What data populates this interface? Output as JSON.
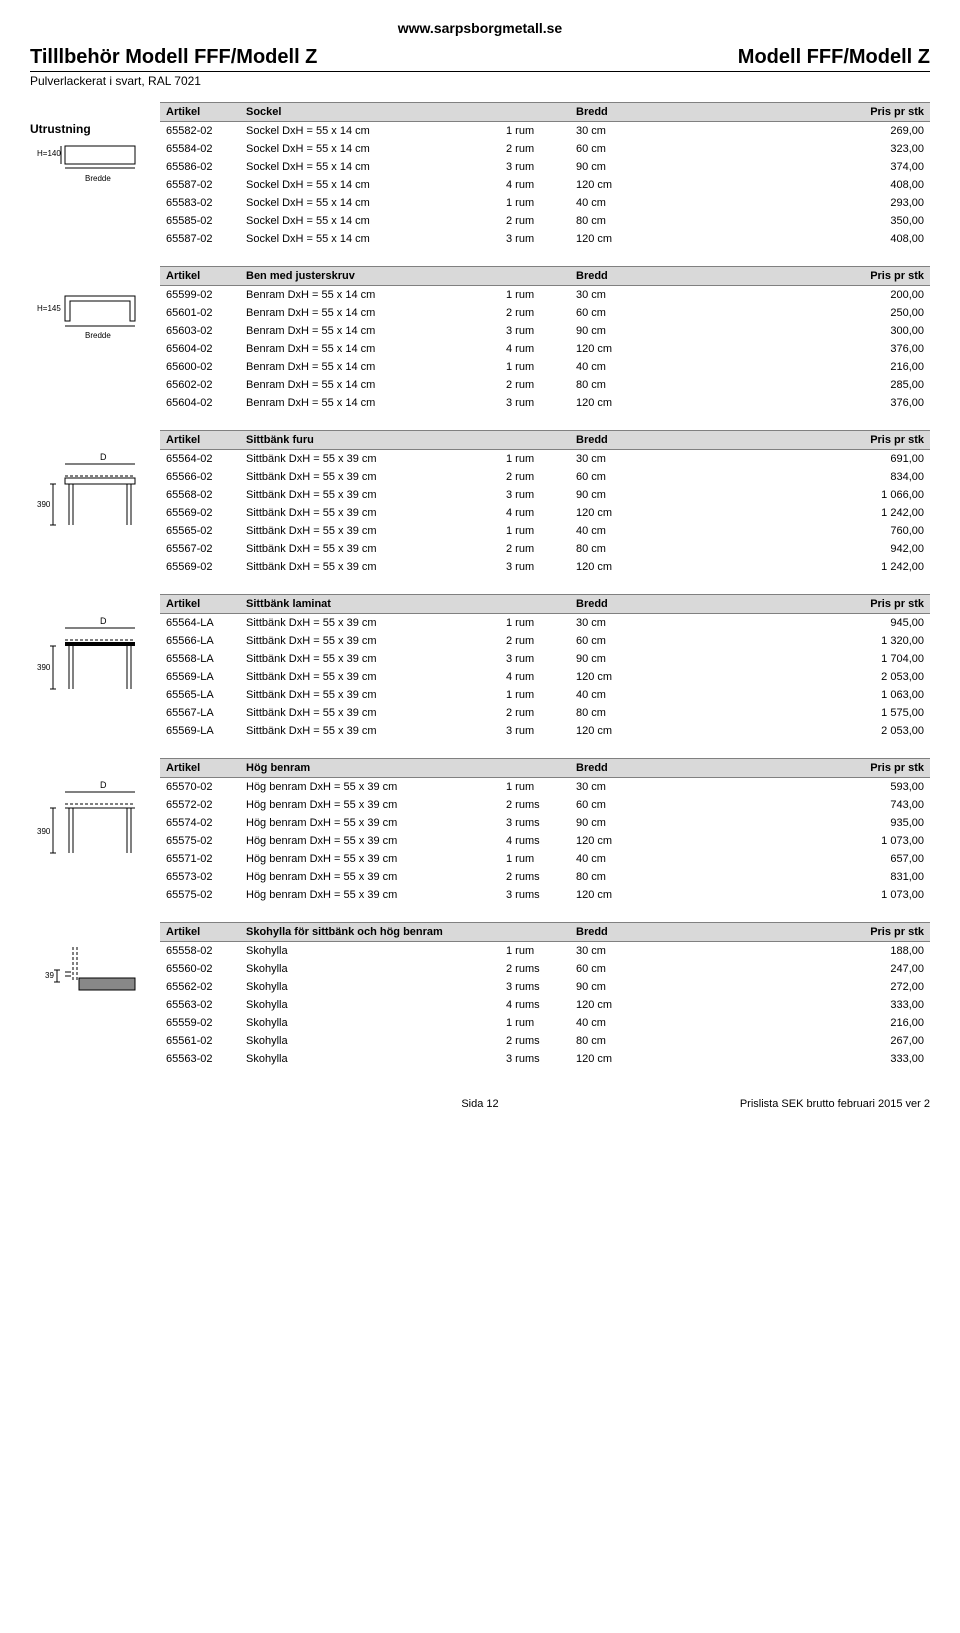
{
  "url": "www.sarpsborgmetall.se",
  "title_left": "Tilllbehör Modell FFF/Modell Z",
  "title_right": "Modell FFF/Modell Z",
  "subtitle": "Pulverlackerat i svart, RAL 7021",
  "utrustning_label": "Utrustning",
  "col_artikel": "Artikel",
  "col_bredd": "Bredd",
  "col_price": "Pris pr stk",
  "footer_page": "Sida 12",
  "footer_right": "Prislista SEK brutto februari 2015 ver 2",
  "sections": [
    {
      "header_desc": "Sockel",
      "rows": [
        {
          "art": "65582-02",
          "desc": "Sockel DxH = 55 x 14 cm",
          "rum": "1 rum",
          "bredd": "30 cm",
          "price": "269,00"
        },
        {
          "art": "65584-02",
          "desc": "Sockel DxH = 55 x 14 cm",
          "rum": "2 rum",
          "bredd": "60 cm",
          "price": "323,00"
        },
        {
          "art": "65586-02",
          "desc": "Sockel DxH = 55 x 14 cm",
          "rum": "3 rum",
          "bredd": "90 cm",
          "price": "374,00"
        },
        {
          "art": "65587-02",
          "desc": "Sockel DxH = 55 x 14 cm",
          "rum": "4 rum",
          "bredd": "120 cm",
          "price": "408,00"
        },
        {
          "art": "65583-02",
          "desc": "Sockel DxH = 55 x 14 cm",
          "rum": "1 rum",
          "bredd": "40 cm",
          "price": "293,00"
        },
        {
          "art": "65585-02",
          "desc": "Sockel DxH = 55 x 14 cm",
          "rum": "2 rum",
          "bredd": "80 cm",
          "price": "350,00"
        },
        {
          "art": "65587-02",
          "desc": "Sockel DxH = 55 x 14 cm",
          "rum": "3 rum",
          "bredd": "120 cm",
          "price": "408,00"
        }
      ],
      "schem_label_h": "H=140",
      "schem_label_b": "Bredde"
    },
    {
      "header_desc": "Ben med justerskruv",
      "rows": [
        {
          "art": "65599-02",
          "desc": "Benram DxH = 55 x 14 cm",
          "rum": "1 rum",
          "bredd": "30 cm",
          "price": "200,00"
        },
        {
          "art": "65601-02",
          "desc": "Benram DxH = 55 x 14 cm",
          "rum": "2 rum",
          "bredd": "60 cm",
          "price": "250,00"
        },
        {
          "art": "65603-02",
          "desc": "Benram DxH = 55 x 14 cm",
          "rum": "3 rum",
          "bredd": "90 cm",
          "price": "300,00"
        },
        {
          "art": "65604-02",
          "desc": "Benram DxH = 55 x 14 cm",
          "rum": "4 rum",
          "bredd": "120 cm",
          "price": "376,00"
        },
        {
          "art": "65600-02",
          "desc": "Benram DxH = 55 x 14 cm",
          "rum": "1 rum",
          "bredd": "40 cm",
          "price": "216,00"
        },
        {
          "art": "65602-02",
          "desc": "Benram DxH = 55 x 14 cm",
          "rum": "2 rum",
          "bredd": "80 cm",
          "price": "285,00"
        },
        {
          "art": "65604-02",
          "desc": "Benram DxH = 55 x 14 cm",
          "rum": "3 rum",
          "bredd": "120 cm",
          "price": "376,00"
        }
      ],
      "schem_label_h": "H=145",
      "schem_label_b": "Bredde"
    },
    {
      "header_desc": "Sittbänk furu",
      "rows": [
        {
          "art": "65564-02",
          "desc": "Sittbänk DxH = 55 x 39 cm",
          "rum": "1 rum",
          "bredd": "30 cm",
          "price": "691,00"
        },
        {
          "art": "65566-02",
          "desc": "Sittbänk DxH = 55 x 39 cm",
          "rum": "2 rum",
          "bredd": "60 cm",
          "price": "834,00"
        },
        {
          "art": "65568-02",
          "desc": "Sittbänk DxH = 55 x 39 cm",
          "rum": "3 rum",
          "bredd": "90 cm",
          "price": "1 066,00"
        },
        {
          "art": "65569-02",
          "desc": "Sittbänk DxH = 55 x 39 cm",
          "rum": "4 rum",
          "bredd": "120 cm",
          "price": "1 242,00"
        },
        {
          "art": "65565-02",
          "desc": "Sittbänk DxH = 55 x 39 cm",
          "rum": "1 rum",
          "bredd": "40 cm",
          "price": "760,00"
        },
        {
          "art": "65567-02",
          "desc": "Sittbänk DxH = 55 x 39 cm",
          "rum": "2 rum",
          "bredd": "80 cm",
          "price": "942,00"
        },
        {
          "art": "65569-02",
          "desc": "Sittbänk DxH = 55 x 39 cm",
          "rum": "3 rum",
          "bredd": "120 cm",
          "price": "1 242,00"
        }
      ],
      "schem_label_h": "390",
      "schem_label_d": "D"
    },
    {
      "header_desc": "Sittbänk laminat",
      "rows": [
        {
          "art": "65564-LA",
          "desc": "Sittbänk DxH = 55 x 39 cm",
          "rum": "1 rum",
          "bredd": "30 cm",
          "price": "945,00"
        },
        {
          "art": "65566-LA",
          "desc": "Sittbänk DxH = 55 x 39 cm",
          "rum": "2 rum",
          "bredd": "60 cm",
          "price": "1 320,00"
        },
        {
          "art": "65568-LA",
          "desc": "Sittbänk DxH = 55 x 39 cm",
          "rum": "3 rum",
          "bredd": "90 cm",
          "price": "1 704,00"
        },
        {
          "art": "65569-LA",
          "desc": "Sittbänk DxH = 55 x 39 cm",
          "rum": "4 rum",
          "bredd": "120 cm",
          "price": "2 053,00"
        },
        {
          "art": "65565-LA",
          "desc": "Sittbänk DxH = 55 x 39 cm",
          "rum": "1 rum",
          "bredd": "40 cm",
          "price": "1 063,00"
        },
        {
          "art": "65567-LA",
          "desc": "Sittbänk DxH = 55 x 39 cm",
          "rum": "2 rum",
          "bredd": "80 cm",
          "price": "1 575,00"
        },
        {
          "art": "65569-LA",
          "desc": "Sittbänk DxH = 55 x 39 cm",
          "rum": "3 rum",
          "bredd": "120 cm",
          "price": "2 053,00"
        }
      ],
      "schem_label_h": "390",
      "schem_label_d": "D"
    },
    {
      "header_desc": "Hög benram",
      "rows": [
        {
          "art": "65570-02",
          "desc": "Hög benram DxH = 55 x 39 cm",
          "rum": "1 rum",
          "bredd": "30 cm",
          "price": "593,00"
        },
        {
          "art": "65572-02",
          "desc": "Hög benram DxH = 55 x 39 cm",
          "rum": "2 rums",
          "bredd": "60 cm",
          "price": "743,00"
        },
        {
          "art": "65574-02",
          "desc": "Hög benram DxH = 55 x 39 cm",
          "rum": "3 rums",
          "bredd": "90 cm",
          "price": "935,00"
        },
        {
          "art": "65575-02",
          "desc": "Hög benram DxH = 55 x 39 cm",
          "rum": "4 rums",
          "bredd": "120 cm",
          "price": "1 073,00"
        },
        {
          "art": "65571-02",
          "desc": "Hög benram DxH = 55 x 39 cm",
          "rum": "1 rum",
          "bredd": "40 cm",
          "price": "657,00"
        },
        {
          "art": "65573-02",
          "desc": "Hög benram DxH = 55 x 39 cm",
          "rum": "2 rums",
          "bredd": "80 cm",
          "price": "831,00"
        },
        {
          "art": "65575-02",
          "desc": "Hög benram DxH = 55 x 39 cm",
          "rum": "3 rums",
          "bredd": "120 cm",
          "price": "1 073,00"
        }
      ],
      "schem_label_h": "390",
      "schem_label_d": "D"
    },
    {
      "header_desc": "Skohylla för sittbänk och hög benram",
      "rows": [
        {
          "art": "65558-02",
          "desc": "Skohylla",
          "rum": "1 rum",
          "bredd": "30 cm",
          "price": "188,00"
        },
        {
          "art": "65560-02",
          "desc": "Skohylla",
          "rum": "2 rums",
          "bredd": "60 cm",
          "price": "247,00"
        },
        {
          "art": "65562-02",
          "desc": "Skohylla",
          "rum": "3 rums",
          "bredd": "90 cm",
          "price": "272,00"
        },
        {
          "art": "65563-02",
          "desc": "Skohylla",
          "rum": "4 rums",
          "bredd": "120 cm",
          "price": "333,00"
        },
        {
          "art": "65559-02",
          "desc": "Skohylla",
          "rum": "1 rum",
          "bredd": "40 cm",
          "price": "216,00"
        },
        {
          "art": "65561-02",
          "desc": "Skohylla",
          "rum": "2 rums",
          "bredd": "80 cm",
          "price": "267,00"
        },
        {
          "art": "65563-02",
          "desc": "Skohylla",
          "rum": "3 rums",
          "bredd": "120 cm",
          "price": "333,00"
        }
      ],
      "schem_label_h": "39"
    }
  ],
  "colors": {
    "header_bg": "#d9d9d9",
    "border": "#808080",
    "text": "#000000"
  }
}
